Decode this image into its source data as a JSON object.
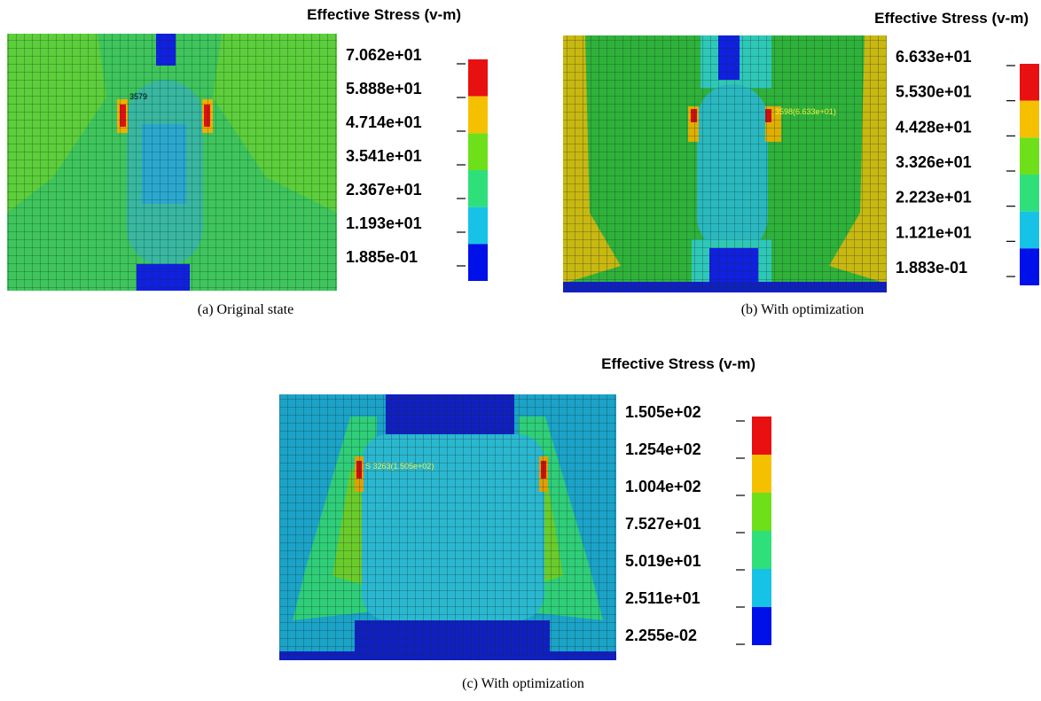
{
  "panels": [
    {
      "title": "Effective Stress (v-m)",
      "caption": "(a) Original state",
      "annotation": "3579",
      "legend_labels": [
        "7.062e+01",
        "5.888e+01",
        "4.714e+01",
        "3.541e+01",
        "2.367e+01",
        "1.193e+01",
        "1.885e-01"
      ]
    },
    {
      "title": "Effective Stress (v-m)",
      "caption": "(b) With optimization",
      "annotation": "3598(6.633e+01)",
      "legend_labels": [
        "6.633e+01",
        "5.530e+01",
        "4.428e+01",
        "3.326e+01",
        "2.223e+01",
        "1.121e+01",
        "1.883e-01"
      ]
    },
    {
      "title": "Effective Stress (v-m)",
      "caption": "(c) With optimization",
      "annotation": "S 3263(1.505e+02)",
      "legend_labels": [
        "1.505e+02",
        "1.254e+02",
        "1.004e+02",
        "7.527e+01",
        "5.019e+01",
        "2.511e+01",
        "2.255e-02"
      ]
    }
  ]
}
